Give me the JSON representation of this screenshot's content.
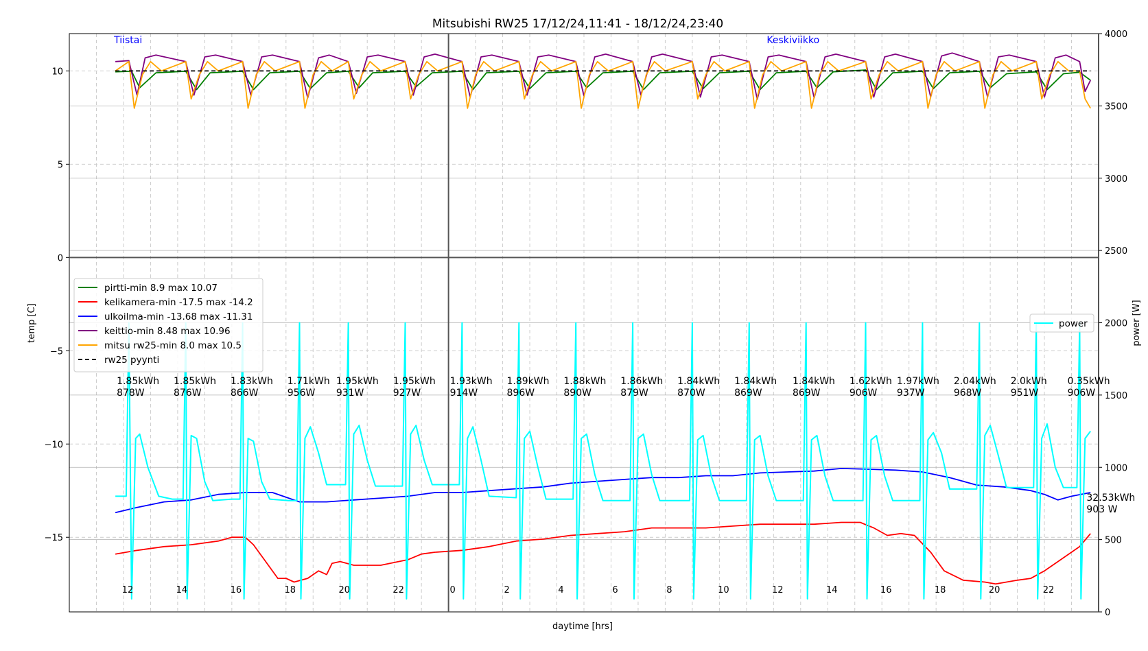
{
  "chart_data": {
    "type": "line",
    "title": "Mitsubishi RW25 17/12/24,11:41 - 18/12/24,23:40",
    "xlabel": "daytime [hrs]",
    "ylabel_left": "temp [C]",
    "ylabel_right": "power [W]",
    "ylim_left": [
      -19,
      12
    ],
    "ylim_right": [
      0,
      4000
    ],
    "yticks_left": [
      "10",
      "5",
      "0",
      "−5",
      "−10",
      "−15"
    ],
    "yticks_left_values": [
      10,
      5,
      0,
      -5,
      -10,
      -15
    ],
    "yticks_right": [
      "4000",
      "3500",
      "3000",
      "2500",
      "2000",
      "1500",
      "1000",
      "500",
      "0"
    ],
    "yticks_right_values": [
      4000,
      3500,
      3000,
      2500,
      2000,
      1500,
      1000,
      500,
      0
    ],
    "hour_labels": [
      "12",
      "14",
      "16",
      "18",
      "20",
      "22",
      "0",
      "2",
      "4",
      "6",
      "8",
      "10",
      "12",
      "14",
      "16",
      "18",
      "20",
      "22"
    ],
    "hour_label_positions": [
      12,
      14,
      16,
      18,
      20,
      22,
      24,
      26,
      28,
      30,
      32,
      34,
      36,
      38,
      40,
      42,
      44,
      46
    ],
    "x_range_hours": [
      10.0,
      48.0
    ],
    "data_start_hour": 11.68,
    "data_end_hour": 47.67,
    "day_boundaries_hours": [
      24,
      48
    ],
    "day_labels": [
      {
        "text": "Tiistai",
        "hour": 11.7
      },
      {
        "text": "Keskiviikko",
        "hour": 35.8
      }
    ],
    "grid": true,
    "legend_left": {
      "placement": "center-left",
      "entries": [
        {
          "label": "pirtti-min 8.9 max 10.07",
          "color": "#008000",
          "dash": false
        },
        {
          "label": "kelikamera-min -17.5 max -14.2",
          "color": "#ff0000",
          "dash": false
        },
        {
          "label": "ulkoilma-min -13.68 max -11.31",
          "color": "#0000ff",
          "dash": false
        },
        {
          "label": "keittio-min 8.48 max 10.96",
          "color": "#800080",
          "dash": false
        },
        {
          "label": "mitsu rw25-min 8.0 max 10.5",
          "color": "#ffa500",
          "dash": false
        },
        {
          "label": "rw25 pyynti",
          "color": "#000000",
          "dash": true
        }
      ]
    },
    "legend_right": {
      "placement": "center-right",
      "entries": [
        {
          "label": "power",
          "color": "#00ffff"
        }
      ]
    },
    "series": [
      {
        "name": "pirtti",
        "axis": "left",
        "color": "#008000",
        "x": [
          11.7,
          12.3,
          12.6,
          13.2,
          14.3,
          14.7,
          15.2,
          16.4,
          16.8,
          17.4,
          18.5,
          18.9,
          19.5,
          20.3,
          20.7,
          21.2,
          22.4,
          22.8,
          23.4,
          24.5,
          24.9,
          25.4,
          26.6,
          27.0,
          27.6,
          28.7,
          29.1,
          29.7,
          30.8,
          31.2,
          31.8,
          33.0,
          33.4,
          34.0,
          35.1,
          35.5,
          36.1,
          37.2,
          37.6,
          38.2,
          39.4,
          39.8,
          40.4,
          41.5,
          41.9,
          42.5,
          43.6,
          44.0,
          44.6,
          45.7,
          46.1,
          46.7,
          47.3,
          47.7
        ],
        "y": [
          9.95,
          9.98,
          9.1,
          9.9,
          9.98,
          9.0,
          9.9,
          9.98,
          9.0,
          9.9,
          9.98,
          9.05,
          9.9,
          9.98,
          9.1,
          9.9,
          9.98,
          9.15,
          9.9,
          9.98,
          9.0,
          9.9,
          9.98,
          9.05,
          9.9,
          9.98,
          9.1,
          9.9,
          9.98,
          9.0,
          9.9,
          9.98,
          9.05,
          9.9,
          9.98,
          9.0,
          9.9,
          9.98,
          9.1,
          9.95,
          10.05,
          9.0,
          9.9,
          9.98,
          9.05,
          9.9,
          9.98,
          9.1,
          9.85,
          9.95,
          9.0,
          9.85,
          9.93,
          9.5
        ]
      },
      {
        "name": "keittio",
        "axis": "left",
        "color": "#800080",
        "x": [
          11.7,
          12.2,
          12.5,
          12.8,
          13.2,
          14.3,
          14.6,
          15.0,
          15.4,
          16.4,
          16.7,
          17.1,
          17.5,
          18.5,
          18.8,
          19.2,
          19.6,
          20.3,
          20.6,
          21.0,
          21.4,
          22.4,
          22.7,
          23.1,
          23.5,
          24.5,
          24.8,
          25.2,
          25.6,
          26.6,
          26.9,
          27.3,
          27.7,
          28.7,
          29.0,
          29.4,
          29.8,
          30.8,
          31.1,
          31.5,
          31.9,
          33.0,
          33.3,
          33.7,
          34.1,
          35.1,
          35.4,
          35.8,
          36.2,
          37.2,
          37.5,
          37.9,
          38.3,
          39.4,
          39.7,
          40.1,
          40.5,
          41.5,
          41.8,
          42.2,
          42.6,
          43.6,
          43.9,
          44.3,
          44.7,
          45.7,
          46.0,
          46.4,
          46.8,
          47.3,
          47.5,
          47.7
        ],
        "y": [
          10.5,
          10.55,
          8.7,
          10.7,
          10.85,
          10.5,
          8.7,
          10.75,
          10.85,
          10.5,
          8.7,
          10.75,
          10.85,
          10.5,
          8.55,
          10.7,
          10.85,
          10.5,
          8.8,
          10.75,
          10.85,
          10.5,
          8.7,
          10.75,
          10.9,
          10.5,
          8.6,
          10.75,
          10.85,
          10.5,
          8.7,
          10.75,
          10.85,
          10.5,
          8.65,
          10.75,
          10.9,
          10.5,
          8.7,
          10.75,
          10.9,
          10.5,
          8.6,
          10.75,
          10.85,
          10.5,
          8.48,
          10.75,
          10.85,
          10.5,
          8.55,
          10.75,
          10.9,
          10.5,
          8.6,
          10.75,
          10.9,
          10.5,
          8.6,
          10.8,
          10.96,
          10.5,
          8.6,
          10.75,
          10.85,
          10.5,
          8.6,
          10.7,
          10.85,
          10.5,
          8.9,
          9.5
        ]
      },
      {
        "name": "mitsu rw25",
        "axis": "left",
        "color": "#ffa500",
        "x": [
          11.7,
          12.2,
          12.4,
          12.7,
          13.0,
          13.4,
          14.3,
          14.5,
          14.8,
          15.1,
          15.5,
          16.4,
          16.6,
          16.9,
          17.2,
          17.6,
          18.5,
          18.7,
          19.0,
          19.3,
          19.7,
          20.3,
          20.5,
          20.8,
          21.1,
          21.5,
          22.4,
          22.6,
          22.9,
          23.2,
          23.6,
          24.5,
          24.7,
          25.0,
          25.3,
          25.7,
          26.6,
          26.8,
          27.1,
          27.4,
          27.8,
          28.7,
          28.9,
          29.2,
          29.5,
          29.9,
          30.8,
          31.0,
          31.3,
          31.6,
          32.0,
          33.0,
          33.2,
          33.5,
          33.8,
          34.2,
          35.1,
          35.3,
          35.6,
          35.9,
          36.3,
          37.2,
          37.4,
          37.7,
          38.0,
          38.4,
          39.4,
          39.6,
          39.9,
          40.2,
          40.6,
          41.5,
          41.7,
          42.0,
          42.3,
          42.7,
          43.6,
          43.8,
          44.1,
          44.4,
          44.8,
          45.7,
          45.9,
          46.2,
          46.5,
          46.9,
          47.3,
          47.5,
          47.7
        ],
        "y": [
          10.0,
          10.5,
          8.0,
          9.8,
          10.5,
          10.0,
          10.5,
          8.5,
          9.8,
          10.5,
          10.0,
          10.5,
          8.0,
          9.8,
          10.5,
          10.0,
          10.5,
          8.0,
          9.8,
          10.5,
          10.0,
          10.5,
          8.5,
          9.8,
          10.5,
          10.0,
          10.5,
          8.5,
          9.8,
          10.5,
          10.0,
          10.5,
          8.0,
          9.8,
          10.5,
          10.0,
          10.5,
          8.5,
          9.8,
          10.5,
          10.0,
          10.5,
          8.0,
          9.8,
          10.5,
          10.0,
          10.5,
          8.0,
          9.8,
          10.5,
          10.0,
          10.5,
          8.5,
          9.8,
          10.5,
          10.0,
          10.5,
          8.0,
          9.8,
          10.5,
          10.0,
          10.5,
          8.0,
          9.8,
          10.5,
          10.0,
          10.5,
          8.5,
          9.8,
          10.5,
          10.0,
          10.5,
          8.0,
          9.8,
          10.5,
          10.0,
          10.5,
          8.0,
          9.8,
          10.5,
          10.0,
          10.5,
          8.5,
          9.8,
          10.5,
          10.0,
          10.0,
          8.5,
          8.0
        ]
      },
      {
        "name": "rw25 pyynti",
        "axis": "left",
        "color": "#000000",
        "dash": true,
        "x": [
          11.7,
          47.7
        ],
        "y": [
          10.0,
          10.0
        ]
      },
      {
        "name": "ulkoilma",
        "axis": "left",
        "color": "#0000ff",
        "x": [
          11.7,
          12.5,
          13.5,
          14.5,
          15.5,
          16.5,
          17.5,
          18.5,
          19.5,
          20.5,
          21.5,
          22.5,
          23.5,
          24.5,
          25.5,
          26.5,
          27.5,
          28.5,
          29.5,
          30.5,
          31.5,
          32.5,
          33.5,
          34.5,
          35.5,
          36.5,
          37.5,
          38.5,
          39.5,
          40.5,
          41.5,
          42.5,
          43.5,
          44.5,
          45.5,
          46.0,
          46.5,
          47.0,
          47.7
        ],
        "y": [
          -13.68,
          -13.4,
          -13.1,
          -13.0,
          -12.7,
          -12.6,
          -12.6,
          -13.1,
          -13.1,
          -13.0,
          -12.9,
          -12.8,
          -12.6,
          -12.6,
          -12.5,
          -12.4,
          -12.3,
          -12.1,
          -12.0,
          -11.9,
          -11.8,
          -11.8,
          -11.7,
          -11.7,
          -11.55,
          -11.5,
          -11.45,
          -11.31,
          -11.35,
          -11.4,
          -11.5,
          -11.8,
          -12.2,
          -12.3,
          -12.5,
          -12.7,
          -13.0,
          -12.8,
          -12.6
        ]
      },
      {
        "name": "kelikamera",
        "axis": "left",
        "color": "#ff0000",
        "x": [
          11.7,
          12.5,
          13.5,
          14.5,
          15.5,
          16.0,
          16.5,
          16.8,
          17.2,
          17.7,
          18.0,
          18.3,
          18.8,
          19.2,
          19.5,
          19.7,
          20.0,
          20.5,
          21.5,
          22.5,
          23.0,
          23.5,
          24.5,
          25.5,
          26.5,
          27.5,
          28.5,
          29.5,
          30.5,
          31.5,
          32.5,
          33.5,
          34.5,
          35.5,
          36.5,
          37.5,
          38.5,
          39.2,
          39.7,
          40.2,
          40.7,
          41.2,
          41.8,
          42.3,
          43.0,
          43.8,
          44.2,
          45.0,
          45.5,
          46.0,
          46.5,
          47.0,
          47.3,
          47.7
        ],
        "y": [
          -15.9,
          -15.7,
          -15.5,
          -15.4,
          -15.2,
          -15.0,
          -15.0,
          -15.4,
          -16.2,
          -17.2,
          -17.2,
          -17.4,
          -17.2,
          -16.8,
          -17.0,
          -16.4,
          -16.3,
          -16.5,
          -16.5,
          -16.2,
          -15.9,
          -15.8,
          -15.7,
          -15.5,
          -15.2,
          -15.1,
          -14.9,
          -14.8,
          -14.7,
          -14.5,
          -14.5,
          -14.5,
          -14.4,
          -14.3,
          -14.3,
          -14.3,
          -14.2,
          -14.2,
          -14.5,
          -14.9,
          -14.8,
          -14.9,
          -15.8,
          -16.8,
          -17.3,
          -17.4,
          -17.5,
          -17.3,
          -17.2,
          -16.8,
          -16.3,
          -15.8,
          -15.5,
          -14.8
        ]
      },
      {
        "name": "power",
        "axis": "right",
        "color": "#00ffff",
        "x": [
          11.7,
          12.1,
          12.2,
          12.3,
          12.45,
          12.6,
          12.9,
          13.3,
          13.8,
          14.2,
          14.3,
          14.35,
          14.5,
          14.7,
          15.0,
          15.3,
          16.0,
          16.3,
          16.4,
          16.45,
          16.6,
          16.8,
          17.1,
          17.4,
          18.1,
          18.4,
          18.5,
          18.55,
          18.7,
          18.9,
          19.2,
          19.5,
          20.2,
          20.3,
          20.35,
          20.5,
          20.7,
          21.0,
          21.3,
          22.3,
          22.4,
          22.45,
          22.6,
          22.8,
          23.1,
          23.4,
          24.4,
          24.5,
          24.55,
          24.7,
          24.9,
          25.2,
          25.5,
          26.5,
          26.6,
          26.65,
          26.8,
          27.0,
          27.3,
          27.6,
          28.6,
          28.7,
          28.75,
          28.9,
          29.1,
          29.4,
          29.7,
          30.7,
          30.8,
          30.85,
          31.0,
          31.2,
          31.5,
          31.8,
          32.9,
          33.0,
          33.05,
          33.2,
          33.4,
          33.7,
          34.0,
          35.0,
          35.1,
          35.15,
          35.3,
          35.5,
          35.8,
          36.1,
          37.1,
          37.2,
          37.25,
          37.4,
          37.6,
          37.9,
          38.2,
          39.3,
          39.4,
          39.45,
          39.6,
          39.8,
          40.1,
          40.4,
          41.4,
          41.5,
          41.55,
          41.7,
          41.9,
          42.2,
          42.5,
          43.5,
          43.6,
          43.65,
          43.8,
          44.0,
          44.3,
          44.6,
          45.6,
          45.7,
          45.75,
          45.9,
          46.1,
          46.4,
          46.7,
          47.2,
          47.3,
          47.35,
          47.5,
          47.7
        ],
        "y": [
          800,
          800,
          2000,
          90,
          1200,
          1230,
          1000,
          800,
          780,
          780,
          2000,
          90,
          1220,
          1200,
          900,
          770,
          780,
          780,
          2000,
          90,
          1200,
          1180,
          900,
          780,
          770,
          770,
          2000,
          90,
          1200,
          1280,
          1100,
          880,
          880,
          2000,
          90,
          1230,
          1290,
          1050,
          870,
          870,
          2000,
          90,
          1230,
          1290,
          1050,
          880,
          880,
          2000,
          90,
          1200,
          1280,
          1050,
          800,
          790,
          2000,
          90,
          1200,
          1250,
          1000,
          780,
          780,
          2000,
          90,
          1200,
          1230,
          950,
          770,
          770,
          2000,
          90,
          1200,
          1230,
          950,
          770,
          770,
          2000,
          90,
          1190,
          1220,
          940,
          770,
          770,
          2000,
          90,
          1190,
          1220,
          940,
          770,
          770,
          2000,
          90,
          1190,
          1220,
          940,
          770,
          770,
          2000,
          90,
          1190,
          1220,
          940,
          770,
          770,
          2000,
          90,
          1190,
          1240,
          1100,
          850,
          850,
          2000,
          90,
          1220,
          1290,
          1080,
          860,
          860,
          2000,
          90,
          1200,
          1300,
          1000,
          860,
          860,
          2000,
          90,
          1200,
          1250
        ]
      }
    ],
    "annotations": [
      {
        "hour": 11.75,
        "kwh": "1.85kWh",
        "w": "878W"
      },
      {
        "hour": 13.85,
        "kwh": "1.85kWh",
        "w": "876W"
      },
      {
        "hour": 15.95,
        "kwh": "1.83kWh",
        "w": "866W"
      },
      {
        "hour": 18.05,
        "kwh": "1.71kWh",
        "w": "956W"
      },
      {
        "hour": 19.85,
        "kwh": "1.95kWh",
        "w": "931W"
      },
      {
        "hour": 21.95,
        "kwh": "1.95kWh",
        "w": "927W"
      },
      {
        "hour": 24.05,
        "kwh": "1.93kWh",
        "w": "914W"
      },
      {
        "hour": 26.15,
        "kwh": "1.89kWh",
        "w": "896W"
      },
      {
        "hour": 28.25,
        "kwh": "1.88kWh",
        "w": "890W"
      },
      {
        "hour": 30.35,
        "kwh": "1.86kWh",
        "w": "879W"
      },
      {
        "hour": 32.45,
        "kwh": "1.84kWh",
        "w": "870W"
      },
      {
        "hour": 34.55,
        "kwh": "1.84kWh",
        "w": "869W"
      },
      {
        "hour": 36.7,
        "kwh": "1.84kWh",
        "w": "869W"
      },
      {
        "hour": 38.8,
        "kwh": "1.62kWh",
        "w": "906W"
      },
      {
        "hour": 40.55,
        "kwh": "1.97kWh",
        "w": "937W"
      },
      {
        "hour": 42.65,
        "kwh": "2.04kWh",
        "w": "968W"
      },
      {
        "hour": 44.75,
        "kwh": "2.0kWh",
        "w": "951W"
      },
      {
        "hour": 46.85,
        "kwh": "0.35kWh",
        "w": "906W"
      }
    ],
    "total_annotation": {
      "hour": 47.25,
      "kwh": "32.53kWh",
      "w": "903 W"
    }
  }
}
